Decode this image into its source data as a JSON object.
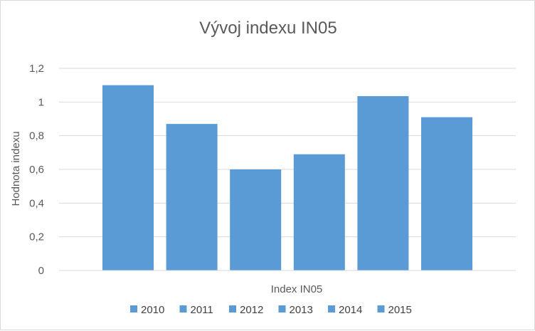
{
  "chart_data": {
    "type": "bar",
    "title": "Vývoj indexu IN05",
    "xlabel": "Index IN05",
    "ylabel": "Hodnota indexu",
    "categories": [
      "Index IN05"
    ],
    "series": [
      {
        "name": "2010",
        "values": [
          1.1
        ]
      },
      {
        "name": "2011",
        "values": [
          0.87
        ]
      },
      {
        "name": "2012",
        "values": [
          0.6
        ]
      },
      {
        "name": "2013",
        "values": [
          0.69
        ]
      },
      {
        "name": "2014",
        "values": [
          1.035
        ]
      },
      {
        "name": "2015",
        "values": [
          0.91
        ]
      }
    ],
    "ylim": [
      0,
      1.2
    ],
    "yticks": [
      "0",
      "0,2",
      "0,4",
      "0,6",
      "0,8",
      "1",
      "1,2"
    ],
    "grid": true,
    "legend_position": "bottom",
    "bar_color": "#5b9bd5"
  }
}
